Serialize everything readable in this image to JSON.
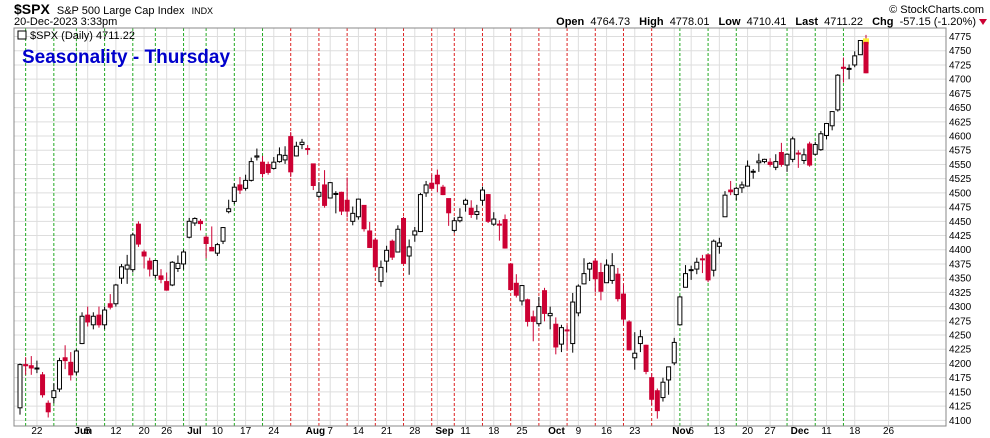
{
  "header": {
    "symbol": "$SPX",
    "name": "S&P 500 Large Cap Index",
    "exchange": "INDX",
    "date": "20-Dec-2023 3:33pm",
    "watermark": "© StockCharts.com",
    "open_label": "Open",
    "open": "4764.73",
    "high_label": "High",
    "high": "4778.01",
    "low_label": "Low",
    "low": "4710.41",
    "last_label": "Last",
    "last": "4711.22",
    "chg_label": "Chg",
    "chg": "-57.15 (-1.20%)"
  },
  "legend": {
    "text": "$SPX (Daily) 4711.22"
  },
  "colors": {
    "up": "#000000",
    "down": "#cc0033",
    "grid": "#dddddd",
    "green_line": "#22aa22",
    "red_line": "#dd2222",
    "title": "#0000cc"
  },
  "chart_data": {
    "type": "candlestick",
    "title": "Seasonality - Thursday",
    "period": "Daily",
    "ylim": [
      4090,
      4790
    ],
    "yticks": [
      4100,
      4125,
      4150,
      4175,
      4200,
      4225,
      4250,
      4275,
      4300,
      4325,
      4350,
      4375,
      4400,
      4425,
      4450,
      4475,
      4500,
      4525,
      4550,
      4575,
      4600,
      4625,
      4650,
      4675,
      4700,
      4725,
      4750,
      4775
    ],
    "xtick_labels": [
      "22",
      "Jun",
      "5",
      "12",
      "20",
      "26",
      "Jul",
      "10",
      "17",
      "24",
      "Aug",
      "7",
      "14",
      "21",
      "28",
      "Sep",
      "11",
      "18",
      "25",
      "Oct",
      "9",
      "16",
      "23",
      "Nov",
      "6",
      "13",
      "20",
      "27",
      "Dec",
      "11",
      "18",
      "26"
    ],
    "thursday_lines_green": [
      "May 18",
      "May 25",
      "Jun 1",
      "Jun 8",
      "Jun 15",
      "Jun 22",
      "Jun 29",
      "Jul 6",
      "Jul 13",
      "Jul 20",
      "Nov 2",
      "Nov 9",
      "Nov 16",
      "Nov 30",
      "Dec 7",
      "Dec 14"
    ],
    "thursday_lines_red": [
      "Jul 27",
      "Aug 3",
      "Aug 10",
      "Aug 17",
      "Aug 24",
      "Aug 31",
      "Sep 7",
      "Sep 14",
      "Sep 21",
      "Sep 28",
      "Oct 5",
      "Oct 12",
      "Oct 19",
      "Oct 26"
    ],
    "candles": [
      {
        "date": "May 17",
        "o": 4122,
        "h": 4200,
        "l": 4110,
        "c": 4198
      },
      {
        "date": "May 18",
        "o": 4198,
        "h": 4211,
        "l": 4180,
        "c": 4196
      },
      {
        "date": "May 19",
        "o": 4196,
        "h": 4213,
        "l": 4180,
        "c": 4192
      },
      {
        "date": "May 22",
        "o": 4192,
        "h": 4205,
        "l": 4183,
        "c": 4192
      },
      {
        "date": "May 23",
        "o": 4180,
        "h": 4185,
        "l": 4140,
        "c": 4145
      },
      {
        "date": "May 24",
        "o": 4130,
        "h": 4135,
        "l": 4105,
        "c": 4115
      },
      {
        "date": "May 25",
        "o": 4140,
        "h": 4165,
        "l": 4130,
        "c": 4152
      },
      {
        "date": "May 26",
        "o": 4155,
        "h": 4210,
        "l": 4150,
        "c": 4205
      },
      {
        "date": "May 30",
        "o": 4210,
        "h": 4232,
        "l": 4190,
        "c": 4205
      },
      {
        "date": "May 31",
        "o": 4202,
        "h": 4220,
        "l": 4170,
        "c": 4180
      },
      {
        "date": "Jun 1",
        "o": 4185,
        "h": 4225,
        "l": 4180,
        "c": 4222
      },
      {
        "date": "Jun 2",
        "o": 4235,
        "h": 4290,
        "l": 4234,
        "c": 4283
      },
      {
        "date": "Jun 5",
        "o": 4285,
        "h": 4300,
        "l": 4265,
        "c": 4273
      },
      {
        "date": "Jun 6",
        "o": 4268,
        "h": 4290,
        "l": 4260,
        "c": 4283
      },
      {
        "date": "Jun 7",
        "o": 4285,
        "h": 4300,
        "l": 4263,
        "c": 4268
      },
      {
        "date": "Jun 8",
        "o": 4268,
        "h": 4300,
        "l": 4260,
        "c": 4294
      },
      {
        "date": "Jun 9",
        "o": 4305,
        "h": 4322,
        "l": 4295,
        "c": 4299
      },
      {
        "date": "Jun 12",
        "o": 4305,
        "h": 4340,
        "l": 4300,
        "c": 4338
      },
      {
        "date": "Jun 13",
        "o": 4350,
        "h": 4375,
        "l": 4340,
        "c": 4370
      },
      {
        "date": "Jun 14",
        "o": 4366,
        "h": 4391,
        "l": 4340,
        "c": 4373
      },
      {
        "date": "Jun 15",
        "o": 4365,
        "h": 4430,
        "l": 4360,
        "c": 4426
      },
      {
        "date": "Jun 16",
        "o": 4445,
        "h": 4450,
        "l": 4405,
        "c": 4410
      },
      {
        "date": "Jun 20",
        "o": 4396,
        "h": 4400,
        "l": 4367,
        "c": 4389
      },
      {
        "date": "Jun 21",
        "o": 4380,
        "h": 4386,
        "l": 4353,
        "c": 4366
      },
      {
        "date": "Jun 22",
        "o": 4355,
        "h": 4382,
        "l": 4350,
        "c": 4381
      },
      {
        "date": "Jun 23",
        "o": 4354,
        "h": 4366,
        "l": 4341,
        "c": 4348
      },
      {
        "date": "Jun 26",
        "o": 4344,
        "h": 4360,
        "l": 4328,
        "c": 4329
      },
      {
        "date": "Jun 27",
        "o": 4338,
        "h": 4380,
        "l": 4336,
        "c": 4378
      },
      {
        "date": "Jun 28",
        "o": 4367,
        "h": 4390,
        "l": 4361,
        "c": 4376
      },
      {
        "date": "Jun 29",
        "o": 4375,
        "h": 4400,
        "l": 4365,
        "c": 4396
      },
      {
        "date": "Jun 30",
        "o": 4422,
        "h": 4456,
        "l": 4420,
        "c": 4450
      },
      {
        "date": "Jul 3",
        "o": 4447,
        "h": 4457,
        "l": 4442,
        "c": 4455
      },
      {
        "date": "Jul 5",
        "o": 4450,
        "h": 4454,
        "l": 4434,
        "c": 4446
      },
      {
        "date": "Jul 6",
        "o": 4422,
        "h": 4425,
        "l": 4385,
        "c": 4411
      },
      {
        "date": "Jul 7",
        "o": 4404,
        "h": 4441,
        "l": 4398,
        "c": 4398
      },
      {
        "date": "Jul 10",
        "o": 4394,
        "h": 4412,
        "l": 4389,
        "c": 4409
      },
      {
        "date": "Jul 11",
        "o": 4415,
        "h": 4440,
        "l": 4410,
        "c": 4439
      },
      {
        "date": "Jul 12",
        "o": 4467,
        "h": 4488,
        "l": 4464,
        "c": 4472
      },
      {
        "date": "Jul 13",
        "o": 4485,
        "h": 4517,
        "l": 4480,
        "c": 4510
      },
      {
        "date": "Jul 14",
        "o": 4514,
        "h": 4528,
        "l": 4498,
        "c": 4505
      },
      {
        "date": "Jul 17",
        "o": 4508,
        "h": 4532,
        "l": 4504,
        "c": 4522
      },
      {
        "date": "Jul 18",
        "o": 4522,
        "h": 4562,
        "l": 4520,
        "c": 4555
      },
      {
        "date": "Jul 19",
        "o": 4563,
        "h": 4578,
        "l": 4557,
        "c": 4565
      },
      {
        "date": "Jul 20",
        "o": 4554,
        "h": 4565,
        "l": 4527,
        "c": 4534
      },
      {
        "date": "Jul 21",
        "o": 4550,
        "h": 4555,
        "l": 4532,
        "c": 4536
      },
      {
        "date": "Jul 24",
        "o": 4543,
        "h": 4563,
        "l": 4541,
        "c": 4554
      },
      {
        "date": "Jul 25",
        "o": 4555,
        "h": 4580,
        "l": 4553,
        "c": 4567
      },
      {
        "date": "Jul 26",
        "o": 4558,
        "h": 4582,
        "l": 4551,
        "c": 4566
      },
      {
        "date": "Jul 27",
        "o": 4599,
        "h": 4607,
        "l": 4528,
        "c": 4537
      },
      {
        "date": "Jul 28",
        "o": 4565,
        "h": 4590,
        "l": 4564,
        "c": 4582
      },
      {
        "date": "Jul 31",
        "o": 4585,
        "h": 4595,
        "l": 4577,
        "c": 4589
      },
      {
        "date": "Aug 1",
        "o": 4578,
        "h": 4584,
        "l": 4567,
        "c": 4577
      },
      {
        "date": "Aug 2",
        "o": 4551,
        "h": 4551,
        "l": 4505,
        "c": 4513
      },
      {
        "date": "Aug 3",
        "o": 4494,
        "h": 4519,
        "l": 4491,
        "c": 4501
      },
      {
        "date": "Aug 4",
        "o": 4514,
        "h": 4540,
        "l": 4474,
        "c": 4478
      },
      {
        "date": "Aug 7",
        "o": 4491,
        "h": 4519,
        "l": 4491,
        "c": 4518
      },
      {
        "date": "Aug 8",
        "o": 4498,
        "h": 4503,
        "l": 4464,
        "c": 4499
      },
      {
        "date": "Aug 9",
        "o": 4501,
        "h": 4502,
        "l": 4461,
        "c": 4468
      },
      {
        "date": "Aug 10",
        "o": 4487,
        "h": 4527,
        "l": 4457,
        "c": 4468
      },
      {
        "date": "Aug 11",
        "o": 4450,
        "h": 4476,
        "l": 4443,
        "c": 4464
      },
      {
        "date": "Aug 14",
        "o": 4458,
        "h": 4490,
        "l": 4453,
        "c": 4489
      },
      {
        "date": "Aug 15",
        "o": 4478,
        "h": 4478,
        "l": 4432,
        "c": 4437
      },
      {
        "date": "Aug 16",
        "o": 4433,
        "h": 4449,
        "l": 4403,
        "c": 4404
      },
      {
        "date": "Aug 17",
        "o": 4417,
        "h": 4421,
        "l": 4364,
        "c": 4370
      },
      {
        "date": "Aug 18",
        "o": 4344,
        "h": 4381,
        "l": 4335,
        "c": 4369
      },
      {
        "date": "Aug 21",
        "o": 4380,
        "h": 4407,
        "l": 4360,
        "c": 4399
      },
      {
        "date": "Aug 22",
        "o": 4415,
        "h": 4418,
        "l": 4382,
        "c": 4387
      },
      {
        "date": "Aug 23",
        "o": 4396,
        "h": 4443,
        "l": 4396,
        "c": 4436
      },
      {
        "date": "Aug 24",
        "o": 4455,
        "h": 4458,
        "l": 4375,
        "c": 4376
      },
      {
        "date": "Aug 25",
        "o": 4389,
        "h": 4418,
        "l": 4356,
        "c": 4405
      },
      {
        "date": "Aug 28",
        "o": 4426,
        "h": 4440,
        "l": 4414,
        "c": 4433
      },
      {
        "date": "Aug 29",
        "o": 4432,
        "h": 4500,
        "l": 4431,
        "c": 4497
      },
      {
        "date": "Aug 30",
        "o": 4500,
        "h": 4521,
        "l": 4493,
        "c": 4514
      },
      {
        "date": "Aug 31",
        "o": 4517,
        "h": 4532,
        "l": 4507,
        "c": 4508
      },
      {
        "date": "Sep 1",
        "o": 4531,
        "h": 4541,
        "l": 4501,
        "c": 4516
      },
      {
        "date": "Sep 5",
        "o": 4510,
        "h": 4514,
        "l": 4496,
        "c": 4497
      },
      {
        "date": "Sep 6",
        "o": 4490,
        "h": 4490,
        "l": 4442,
        "c": 4465
      },
      {
        "date": "Sep 7",
        "o": 4434,
        "h": 4457,
        "l": 4430,
        "c": 4451
      },
      {
        "date": "Sep 8",
        "o": 4451,
        "h": 4473,
        "l": 4448,
        "c": 4457
      },
      {
        "date": "Sep 11",
        "o": 4480,
        "h": 4490,
        "l": 4467,
        "c": 4487
      },
      {
        "date": "Sep 12",
        "o": 4473,
        "h": 4487,
        "l": 4456,
        "c": 4462
      },
      {
        "date": "Sep 13",
        "o": 4462,
        "h": 4479,
        "l": 4453,
        "c": 4467
      },
      {
        "date": "Sep 14",
        "o": 4487,
        "h": 4511,
        "l": 4478,
        "c": 4505
      },
      {
        "date": "Sep 15",
        "o": 4497,
        "h": 4498,
        "l": 4447,
        "c": 4450
      },
      {
        "date": "Sep 18",
        "o": 4445,
        "h": 4466,
        "l": 4442,
        "c": 4454
      },
      {
        "date": "Sep 19",
        "o": 4445,
        "h": 4452,
        "l": 4416,
        "c": 4444
      },
      {
        "date": "Sep 20",
        "o": 4453,
        "h": 4462,
        "l": 4402,
        "c": 4403
      },
      {
        "date": "Sep 21",
        "o": 4375,
        "h": 4376,
        "l": 4329,
        "c": 4330
      },
      {
        "date": "Sep 22",
        "o": 4341,
        "h": 4357,
        "l": 4316,
        "c": 4320
      },
      {
        "date": "Sep 25",
        "o": 4310,
        "h": 4338,
        "l": 4302,
        "c": 4337
      },
      {
        "date": "Sep 26",
        "o": 4312,
        "h": 4314,
        "l": 4265,
        "c": 4274
      },
      {
        "date": "Sep 27",
        "o": 4282,
        "h": 4293,
        "l": 4239,
        "c": 4274
      },
      {
        "date": "Sep 28",
        "o": 4270,
        "h": 4317,
        "l": 4265,
        "c": 4300
      },
      {
        "date": "Sep 29",
        "o": 4328,
        "h": 4333,
        "l": 4274,
        "c": 4288
      },
      {
        "date": "Oct 2",
        "o": 4284,
        "h": 4300,
        "l": 4260,
        "c": 4288
      },
      {
        "date": "Oct 3",
        "o": 4269,
        "h": 4281,
        "l": 4216,
        "c": 4229
      },
      {
        "date": "Oct 4",
        "o": 4234,
        "h": 4268,
        "l": 4220,
        "c": 4263
      },
      {
        "date": "Oct 5",
        "o": 4259,
        "h": 4267,
        "l": 4225,
        "c": 4258
      },
      {
        "date": "Oct 6",
        "o": 4235,
        "h": 4324,
        "l": 4219,
        "c": 4308
      },
      {
        "date": "Oct 9",
        "o": 4289,
        "h": 4339,
        "l": 4283,
        "c": 4336
      },
      {
        "date": "Oct 10",
        "o": 4340,
        "h": 4385,
        "l": 4339,
        "c": 4358
      },
      {
        "date": "Oct 11",
        "o": 4366,
        "h": 4378,
        "l": 4345,
        "c": 4376
      },
      {
        "date": "Oct 12",
        "o": 4380,
        "h": 4385,
        "l": 4325,
        "c": 4349
      },
      {
        "date": "Oct 13",
        "o": 4360,
        "h": 4377,
        "l": 4311,
        "c": 4327
      },
      {
        "date": "Oct 16",
        "o": 4342,
        "h": 4383,
        "l": 4342,
        "c": 4373
      },
      {
        "date": "Oct 17",
        "o": 4346,
        "h": 4394,
        "l": 4340,
        "c": 4372
      },
      {
        "date": "Oct 18",
        "o": 4357,
        "h": 4368,
        "l": 4309,
        "c": 4314
      },
      {
        "date": "Oct 19",
        "o": 4322,
        "h": 4339,
        "l": 4268,
        "c": 4278
      },
      {
        "date": "Oct 20",
        "o": 4273,
        "h": 4276,
        "l": 4223,
        "c": 4224
      },
      {
        "date": "Oct 23",
        "o": 4210,
        "h": 4255,
        "l": 4189,
        "c": 4218
      },
      {
        "date": "Oct 24",
        "o": 4235,
        "h": 4259,
        "l": 4220,
        "c": 4247
      },
      {
        "date": "Oct 25",
        "o": 4232,
        "h": 4233,
        "l": 4181,
        "c": 4186
      },
      {
        "date": "Oct 26",
        "o": 4175,
        "h": 4183,
        "l": 4127,
        "c": 4137
      },
      {
        "date": "Oct 27",
        "o": 4152,
        "h": 4156,
        "l": 4103,
        "c": 4117
      },
      {
        "date": "Oct 30",
        "o": 4140,
        "h": 4175,
        "l": 4133,
        "c": 4167
      },
      {
        "date": "Oct 31",
        "o": 4171,
        "h": 4194,
        "l": 4145,
        "c": 4194
      },
      {
        "date": "Nov 1",
        "o": 4201,
        "h": 4245,
        "l": 4197,
        "c": 4237
      },
      {
        "date": "Nov 2",
        "o": 4268,
        "h": 4319,
        "l": 4268,
        "c": 4317
      },
      {
        "date": "Nov 3",
        "o": 4334,
        "h": 4373,
        "l": 4334,
        "c": 4358
      },
      {
        "date": "Nov 6",
        "o": 4364,
        "h": 4372,
        "l": 4347,
        "c": 4365
      },
      {
        "date": "Nov 7",
        "o": 4366,
        "h": 4386,
        "l": 4357,
        "c": 4378
      },
      {
        "date": "Nov 8",
        "o": 4384,
        "h": 4391,
        "l": 4359,
        "c": 4383
      },
      {
        "date": "Nov 9",
        "o": 4391,
        "h": 4393,
        "l": 4343,
        "c": 4347
      },
      {
        "date": "Nov 10",
        "o": 4364,
        "h": 4418,
        "l": 4353,
        "c": 4415
      },
      {
        "date": "Nov 13",
        "o": 4406,
        "h": 4421,
        "l": 4393,
        "c": 4412
      },
      {
        "date": "Nov 14",
        "o": 4458,
        "h": 4503,
        "l": 4458,
        "c": 4496
      },
      {
        "date": "Nov 15",
        "o": 4505,
        "h": 4521,
        "l": 4496,
        "c": 4502
      },
      {
        "date": "Nov 16",
        "o": 4497,
        "h": 4511,
        "l": 4487,
        "c": 4508
      },
      {
        "date": "Nov 17",
        "o": 4509,
        "h": 4520,
        "l": 4500,
        "c": 4514
      },
      {
        "date": "Nov 20",
        "o": 4512,
        "h": 4557,
        "l": 4511,
        "c": 4547
      },
      {
        "date": "Nov 21",
        "o": 4538,
        "h": 4542,
        "l": 4525,
        "c": 4538
      },
      {
        "date": "Nov 22",
        "o": 4553,
        "h": 4569,
        "l": 4537,
        "c": 4556
      },
      {
        "date": "Nov 24",
        "o": 4555,
        "h": 4560,
        "l": 4552,
        "c": 4559
      },
      {
        "date": "Nov 27",
        "o": 4554,
        "h": 4561,
        "l": 4546,
        "c": 4550
      },
      {
        "date": "Nov 28",
        "o": 4545,
        "h": 4568,
        "l": 4540,
        "c": 4555
      },
      {
        "date": "Nov 29",
        "o": 4571,
        "h": 4588,
        "l": 4546,
        "c": 4550
      },
      {
        "date": "Nov 30",
        "o": 4549,
        "h": 4569,
        "l": 4537,
        "c": 4568
      },
      {
        "date": "Dec 1",
        "o": 4559,
        "h": 4599,
        "l": 4554,
        "c": 4595
      },
      {
        "date": "Dec 4",
        "o": 4570,
        "h": 4575,
        "l": 4544,
        "c": 4569
      },
      {
        "date": "Dec 5",
        "o": 4557,
        "h": 4578,
        "l": 4551,
        "c": 4567
      },
      {
        "date": "Dec 6",
        "o": 4586,
        "h": 4590,
        "l": 4546,
        "c": 4549
      },
      {
        "date": "Dec 7",
        "o": 4568,
        "h": 4590,
        "l": 4566,
        "c": 4585
      },
      {
        "date": "Dec 8",
        "o": 4576,
        "h": 4609,
        "l": 4574,
        "c": 4604
      },
      {
        "date": "Dec 11",
        "o": 4601,
        "h": 4623,
        "l": 4594,
        "c": 4622
      },
      {
        "date": "Dec 12",
        "o": 4618,
        "h": 4643,
        "l": 4610,
        "c": 4643
      },
      {
        "date": "Dec 13",
        "o": 4646,
        "h": 4709,
        "l": 4643,
        "c": 4707
      },
      {
        "date": "Dec 14",
        "o": 4721,
        "h": 4738,
        "l": 4694,
        "c": 4719
      },
      {
        "date": "Dec 15",
        "o": 4719,
        "h": 4726,
        "l": 4700,
        "c": 4719
      },
      {
        "date": "Dec 18",
        "o": 4725,
        "h": 4749,
        "l": 4721,
        "c": 4741
      },
      {
        "date": "Dec 19",
        "o": 4743,
        "h": 4768,
        "l": 4743,
        "c": 4768
      },
      {
        "date": "Dec 20",
        "o": 4764.73,
        "h": 4778.01,
        "l": 4710.41,
        "c": 4711.22
      }
    ]
  }
}
